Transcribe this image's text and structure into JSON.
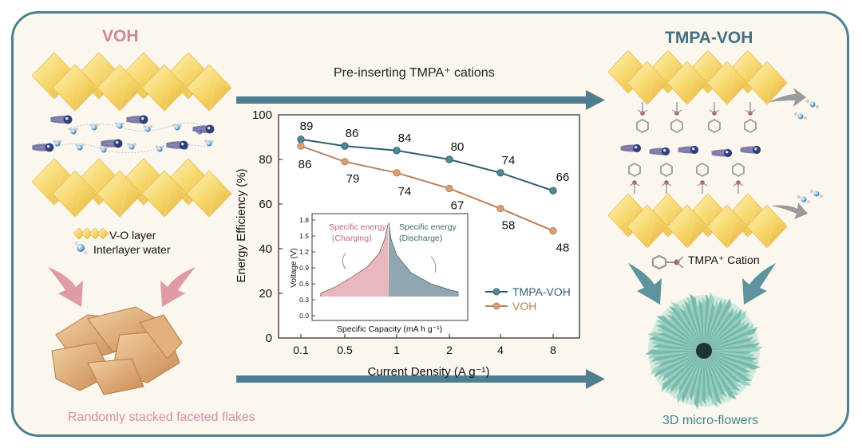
{
  "left_panel": {
    "title": "VOH",
    "legend": {
      "layer_label": "V-O layer",
      "water_label": "Interlayer water"
    },
    "morphology_label": "Randomly stacked faceted flakes"
  },
  "right_panel": {
    "title": "TMPA-VOH",
    "cation_label": "TMPA⁺ Cation",
    "morphology_label": "3D  micro-flowers"
  },
  "center": {
    "arrow_label": "Pre-inserting TMPA⁺ cations"
  },
  "chart_data": [
    {
      "type": "line",
      "xlabel": "Current Density (A g⁻¹)",
      "ylabel": "Energy Efficiency (%)",
      "categories": [
        "0.1",
        "0.5",
        "1",
        "2",
        "4",
        "8"
      ],
      "ylim": [
        0,
        100
      ],
      "yticks": [
        0,
        20,
        40,
        60,
        80,
        100
      ],
      "legend_position": "bottom-right",
      "series": [
        {
          "name": "TMPA-VOH",
          "values": [
            89,
            86,
            84,
            80,
            74,
            66
          ],
          "color": "#2f5f6c",
          "marker_color": "#4d8a93"
        },
        {
          "name": "VOH",
          "values": [
            86,
            79,
            74,
            67,
            58,
            48
          ],
          "color": "#b8825b",
          "marker_color": "#d79f76"
        }
      ],
      "data_labels": true
    },
    {
      "type": "area",
      "xlabel": "Specific Capacity (mA h g⁻¹)",
      "ylabel": "Voltage (V)",
      "ylim": [
        0.0,
        1.8
      ],
      "yticks": [
        "0.0",
        "0.3",
        "0.6",
        "0.9",
        "1.2",
        "1.5",
        "1.8"
      ],
      "regions": [
        {
          "name": "Specific energy (Charging)",
          "color": "#e9b8bd"
        },
        {
          "name": "Specific energy (Discharge)",
          "color": "#8fa7b0"
        }
      ]
    }
  ]
}
